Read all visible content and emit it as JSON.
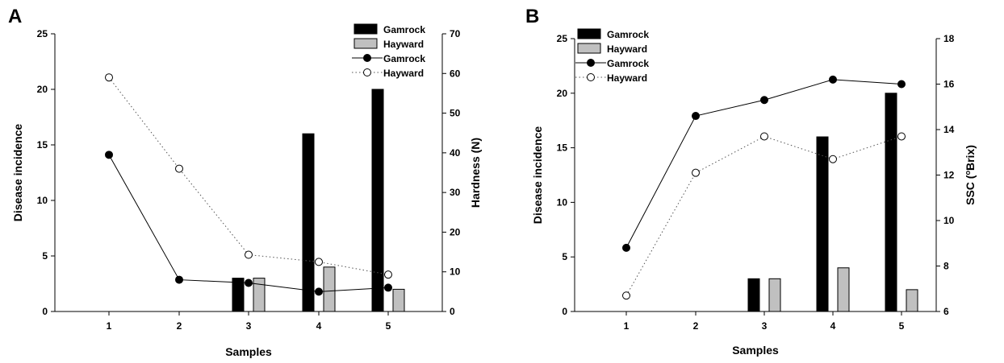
{
  "chart_data": [
    {
      "type": "bar",
      "panel": "A",
      "categories": [
        "1",
        "2",
        "3",
        "4",
        "5"
      ],
      "xlabel": "Samples",
      "ylabel": "Disease incidence",
      "ylim": [
        0,
        25
      ],
      "yticks": [
        "0",
        "5",
        "10",
        "15",
        "20",
        "25"
      ],
      "y2label": "Hardness (N)",
      "y2lim": [
        0,
        70
      ],
      "y2ticks": [
        "0",
        "10",
        "20",
        "30",
        "40",
        "50",
        "60",
        "70"
      ],
      "bar_series": [
        {
          "name": "Gamrock",
          "color": "#000000",
          "values": [
            0,
            0,
            3,
            16,
            20
          ]
        },
        {
          "name": "Hayward",
          "color": "#c0c0c0",
          "values": [
            0,
            0,
            3,
            4,
            2
          ]
        }
      ],
      "line_series": [
        {
          "name": "Gamrock",
          "marker": "filled-circle",
          "line_style": "solid",
          "axis": "right",
          "values": [
            39.5,
            8.0,
            7.2,
            5.0,
            6.0
          ]
        },
        {
          "name": "Hayward",
          "marker": "open-circle",
          "line_style": "dotted",
          "axis": "right",
          "values": [
            59.0,
            36.0,
            14.3,
            12.5,
            9.3
          ]
        }
      ],
      "legend_position": "top-right",
      "grid": false
    },
    {
      "type": "bar",
      "panel": "B",
      "categories": [
        "1",
        "2",
        "3",
        "4",
        "5"
      ],
      "xlabel": "Samples",
      "ylabel": "Disease incidence",
      "ylim": [
        0,
        25
      ],
      "yticks": [
        "0",
        "5",
        "10",
        "15",
        "20",
        "25"
      ],
      "y2label_prefix": "SSC (",
      "y2label_sup": "o",
      "y2label_suffix": "Brix)",
      "y2lim": [
        6,
        18
      ],
      "y2ticks": [
        "6",
        "8",
        "10",
        "12",
        "14",
        "16",
        "18"
      ],
      "bar_series": [
        {
          "name": "Gamrock",
          "color": "#000000",
          "values": [
            0,
            0,
            3,
            16,
            20
          ]
        },
        {
          "name": "Hayward",
          "color": "#c0c0c0",
          "values": [
            0,
            0,
            3,
            4,
            2
          ]
        }
      ],
      "line_series": [
        {
          "name": "Gamrock",
          "marker": "filled-circle",
          "line_style": "solid",
          "axis": "right",
          "values": [
            8.8,
            14.6,
            15.3,
            16.2,
            16.0
          ]
        },
        {
          "name": "Hayward",
          "marker": "open-circle",
          "line_style": "dotted",
          "axis": "right",
          "values": [
            6.7,
            12.1,
            13.7,
            12.7,
            13.7
          ]
        }
      ],
      "legend_position": "top-left",
      "grid": false
    }
  ]
}
